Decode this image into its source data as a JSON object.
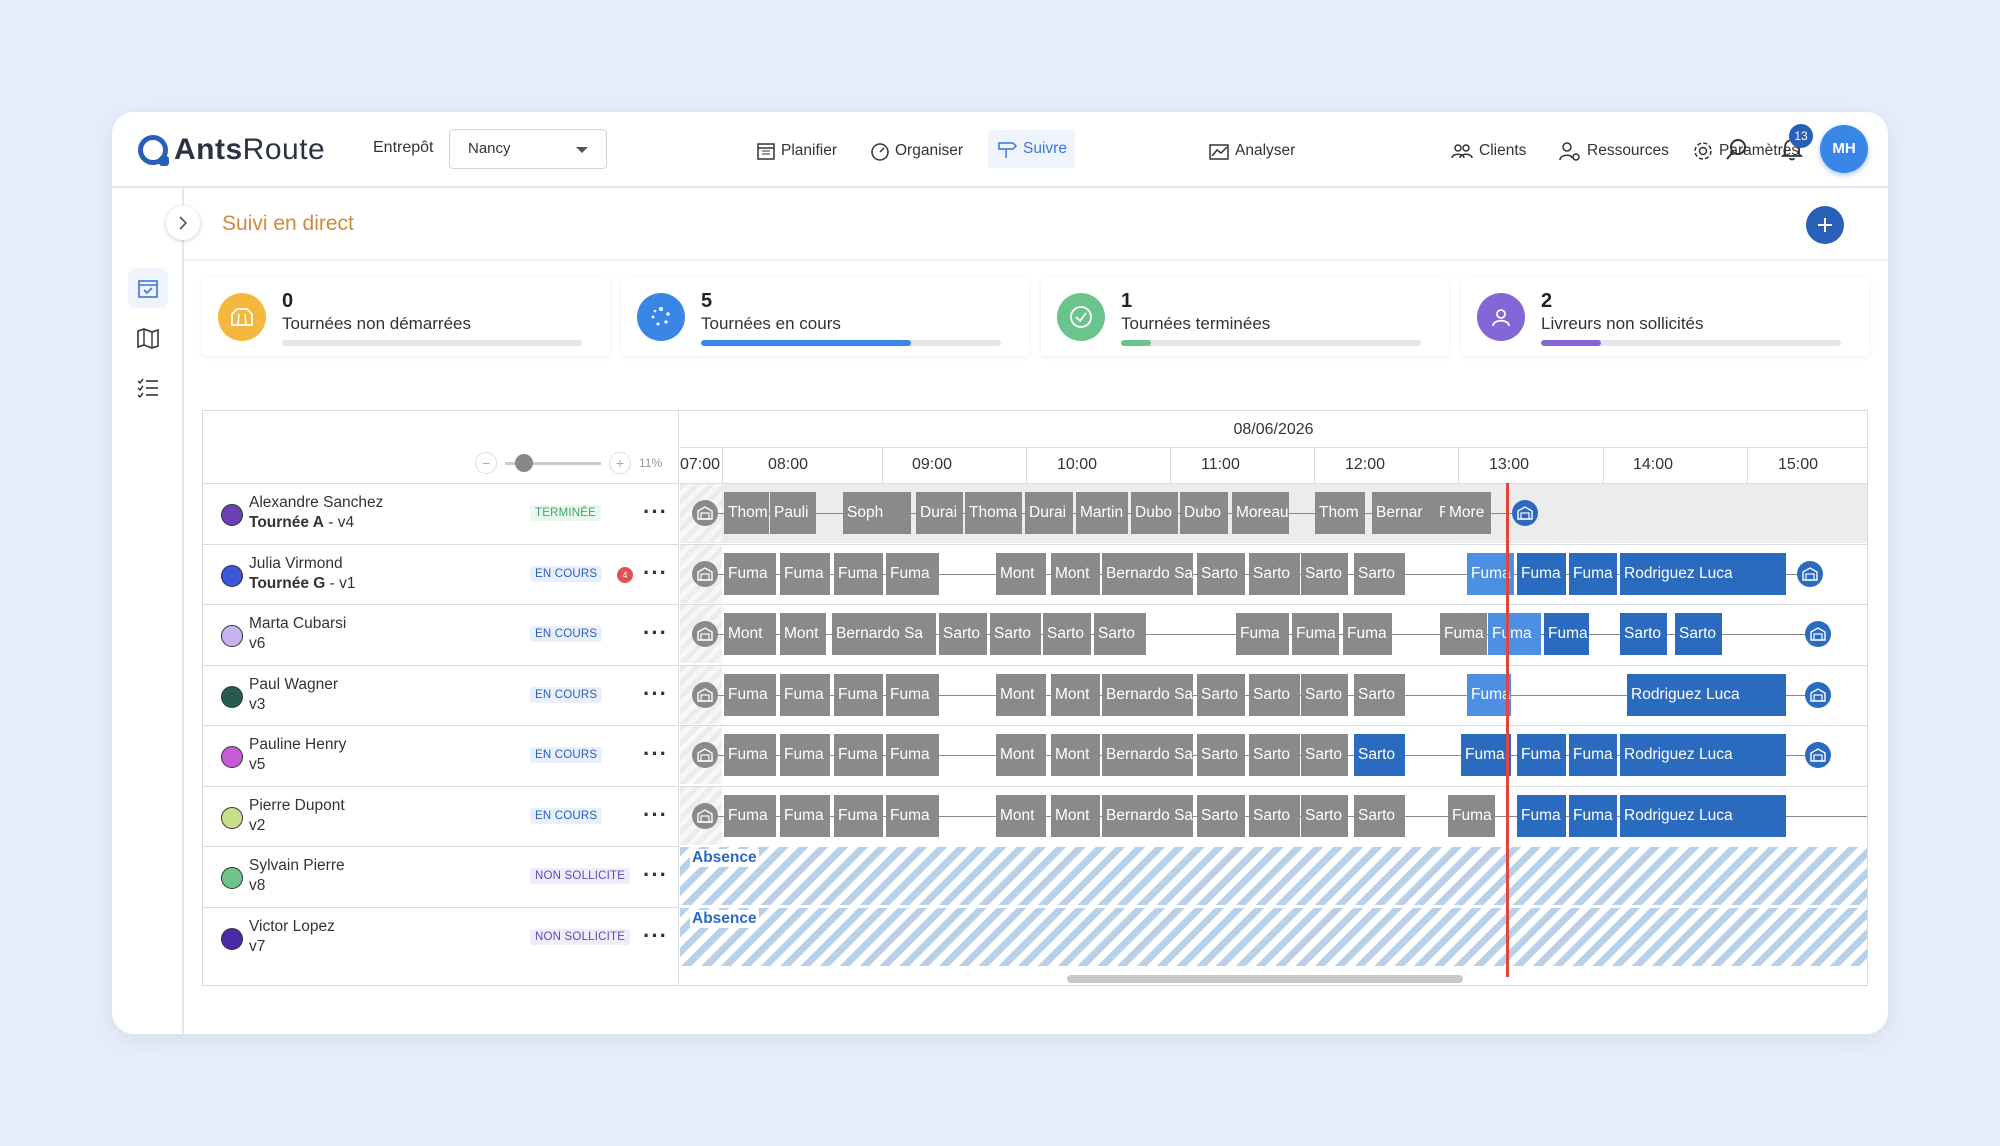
{
  "app": {
    "logo_bold": "Ants",
    "logo_rest": "Route"
  },
  "header": {
    "entrepot_label": "Entrepôt",
    "entrepot_value": "Nancy",
    "nav": [
      "Planifier",
      "Organiser",
      "Suivre",
      "Analyser"
    ],
    "right_nav": [
      "Clients",
      "Ressources",
      "Paramètres"
    ],
    "notifications": "13",
    "user_initials": "MH"
  },
  "page": {
    "title": "Suivi en direct"
  },
  "stats": [
    {
      "num": "0",
      "label": "Tournées non démarrées",
      "color": "#f5b73d",
      "progress": 0,
      "bar": "#d9dbe0"
    },
    {
      "num": "5",
      "label": "Tournées en cours",
      "color": "#3a86e6",
      "progress": 0.7,
      "bar": "#3a86e6"
    },
    {
      "num": "1",
      "label": "Tournées terminées",
      "color": "#6cc48d",
      "progress": 0.1,
      "bar": "#6cc48d"
    },
    {
      "num": "2",
      "label": "Livreurs non sollicités",
      "color": "#8366d8",
      "progress": 0.2,
      "bar": "#8366d8"
    }
  ],
  "gantt": {
    "zoom_minus": "−",
    "zoom_plus": "+",
    "zoom_pct": "11%",
    "date": "08/06/2026",
    "hours": [
      "07:00",
      "08:00",
      "09:00",
      "10:00",
      "11:00",
      "12:00",
      "13:00",
      "14:00",
      "15:00"
    ],
    "absence_label": "Absence",
    "resources": [
      {
        "name": "Alexandre Sanchez",
        "tour": "Tournée A",
        "vehicle": " - v4",
        "status": "TERMINÉE",
        "dot": "#6a3fb5",
        "alert": ""
      },
      {
        "name": "Julia Virmond",
        "tour": "Tournée G",
        "vehicle": " - v1",
        "status": "EN COURS",
        "dot": "#3d55d8",
        "alert": "4"
      },
      {
        "name": "Marta Cubarsi",
        "tour": "",
        "vehicle": "v6",
        "status": "EN COURS",
        "dot": "#c7b4ee",
        "alert": ""
      },
      {
        "name": "Paul Wagner",
        "tour": "",
        "vehicle": "v3",
        "status": "EN COURS",
        "dot": "#265b52",
        "alert": ""
      },
      {
        "name": "Pauline Henry",
        "tour": "",
        "vehicle": "v5",
        "status": "EN COURS",
        "dot": "#c85ad8",
        "alert": ""
      },
      {
        "name": "Pierre Dupont",
        "tour": "",
        "vehicle": "v2",
        "status": "EN COURS",
        "dot": "#c8df8e",
        "alert": ""
      },
      {
        "name": "Sylvain Pierre",
        "tour": "",
        "vehicle": "v8",
        "status": "NON SOLLICITE",
        "dot": "#6fc48a",
        "alert": ""
      },
      {
        "name": "Victor Lopez",
        "tour": "",
        "vehicle": "v7",
        "status": "NON SOLLICITE",
        "dot": "#4a2ba8",
        "alert": ""
      }
    ],
    "rows": [
      {
        "blocks": [
          [
            "Thom",
            "g",
            13,
            1
          ],
          [
            "Pauli",
            "g",
            14,
            1
          ],
          [
            "Soph",
            "g",
            16,
            1
          ],
          [
            "Durai",
            "g",
            19,
            1
          ],
          [
            "Thoma",
            "g",
            20,
            1
          ],
          [
            "Durai",
            "g",
            22,
            1
          ],
          [
            "Martin",
            "g",
            23,
            1
          ],
          [
            "Dubo",
            "g",
            24,
            1
          ],
          [
            "Dubo",
            "g",
            24.5,
            1
          ],
          [
            "Moreau",
            "g",
            25,
            1
          ],
          [
            "Thom",
            "g",
            27,
            1
          ],
          [
            "Bernar",
            "g",
            28,
            1
          ],
          [
            "F",
            "g",
            28.8,
            0.3
          ],
          [
            "More",
            "g",
            29,
            1
          ]
        ]
      },
      {
        "blocks": [
          [
            "Fuma",
            "g",
            8,
            1
          ],
          [
            "Fuma",
            "g",
            8,
            1
          ],
          [
            "Fuma",
            "g",
            8,
            1
          ],
          [
            "Fuma",
            "g",
            8,
            1
          ],
          [
            "Mont",
            "g",
            9,
            1
          ],
          [
            "Mont",
            "g",
            9,
            1
          ],
          [
            "Bernardo Sa",
            "g",
            10,
            1
          ],
          [
            "Sarto",
            "g",
            11,
            1
          ],
          [
            "Sarto",
            "g",
            11,
            1
          ],
          [
            "Sarto",
            "g",
            11,
            1
          ],
          [
            "Sarto",
            "g",
            12,
            1
          ],
          [
            "Fuma",
            "lb",
            13,
            1
          ],
          [
            "Fuma",
            "b",
            13,
            1
          ],
          [
            "Fuma",
            "b",
            13,
            1
          ],
          [
            "Rodriguez Luca",
            "b",
            14,
            1
          ]
        ]
      },
      {
        "blocks": [
          [
            "Mont",
            "g",
            7,
            1
          ],
          [
            "Mont",
            "g",
            8,
            1
          ],
          [
            "Bernardo Sa",
            "g",
            8,
            1
          ],
          [
            "Sarto",
            "g",
            9,
            1
          ],
          [
            "Sarto",
            "g",
            9,
            1
          ],
          [
            "Sarto",
            "g",
            10,
            1
          ],
          [
            "Sarto",
            "g",
            10,
            1
          ],
          [
            "Fuma",
            "g",
            11,
            1
          ],
          [
            "Fuma",
            "g",
            11,
            1
          ],
          [
            "Fuma",
            "g",
            12,
            1
          ],
          [
            "Fuma",
            "g",
            12,
            1
          ],
          [
            "Fuma",
            "lb",
            13,
            1
          ],
          [
            "Fuma",
            "b",
            13,
            1
          ],
          [
            "Sarto",
            "b",
            14,
            1
          ],
          [
            "Sarto",
            "b",
            14,
            1
          ]
        ]
      },
      {
        "blocks": [
          [
            "Fuma",
            "g",
            8,
            1
          ],
          [
            "Fuma",
            "g",
            8,
            1
          ],
          [
            "Fuma",
            "g",
            8,
            1
          ],
          [
            "Fuma",
            "g",
            8,
            1
          ],
          [
            "Mont",
            "g",
            9,
            1
          ],
          [
            "Mont",
            "g",
            9,
            1
          ],
          [
            "Bernardo Sa",
            "g",
            10,
            1
          ],
          [
            "Sarto",
            "g",
            11,
            1
          ],
          [
            "Sarto",
            "g",
            11,
            1
          ],
          [
            "Sarto",
            "g",
            11,
            1
          ],
          [
            "Sarto",
            "g",
            12,
            1
          ],
          [
            "Fuma",
            "lb",
            13,
            1
          ],
          [
            "Rodriguez Luca",
            "b",
            14,
            1
          ]
        ]
      },
      {
        "blocks": [
          [
            "Fuma",
            "g",
            8,
            1
          ],
          [
            "Fuma",
            "g",
            8,
            1
          ],
          [
            "Fuma",
            "g",
            8,
            1
          ],
          [
            "Fuma",
            "g",
            8,
            1
          ],
          [
            "Mont",
            "g",
            9,
            1
          ],
          [
            "Mont",
            "g",
            9,
            1
          ],
          [
            "Bernardo Sa",
            "g",
            10,
            1
          ],
          [
            "Sarto",
            "g",
            11,
            1
          ],
          [
            "Sarto",
            "g",
            11,
            1
          ],
          [
            "Sarto",
            "g",
            11,
            1
          ],
          [
            "Sarto",
            "b",
            12,
            1
          ],
          [
            "Fuma",
            "b",
            13,
            1
          ],
          [
            "Fuma",
            "b",
            13,
            1
          ],
          [
            "Fuma",
            "b",
            13,
            1
          ],
          [
            "Rodriguez Luca",
            "b",
            14,
            1
          ]
        ]
      },
      {
        "blocks": [
          [
            "Fuma",
            "g",
            8,
            1
          ],
          [
            "Fuma",
            "g",
            8,
            1
          ],
          [
            "Fuma",
            "g",
            8,
            1
          ],
          [
            "Fuma",
            "g",
            8,
            1
          ],
          [
            "Mont",
            "g",
            9,
            1
          ],
          [
            "Mont",
            "g",
            9,
            1
          ],
          [
            "Bernardo Sa",
            "g",
            10,
            1
          ],
          [
            "Sarto",
            "g",
            11,
            1
          ],
          [
            "Sarto",
            "g",
            11,
            1
          ],
          [
            "Sarto",
            "g",
            11,
            1
          ],
          [
            "Sarto",
            "g",
            12,
            1
          ],
          [
            "Fuma",
            "g",
            12,
            1
          ],
          [
            "Fuma",
            "b",
            13,
            1
          ],
          [
            "Fuma",
            "b",
            13,
            1
          ],
          [
            "Rodriguez Luca",
            "b",
            14,
            1
          ]
        ]
      }
    ],
    "now": "13:00"
  }
}
